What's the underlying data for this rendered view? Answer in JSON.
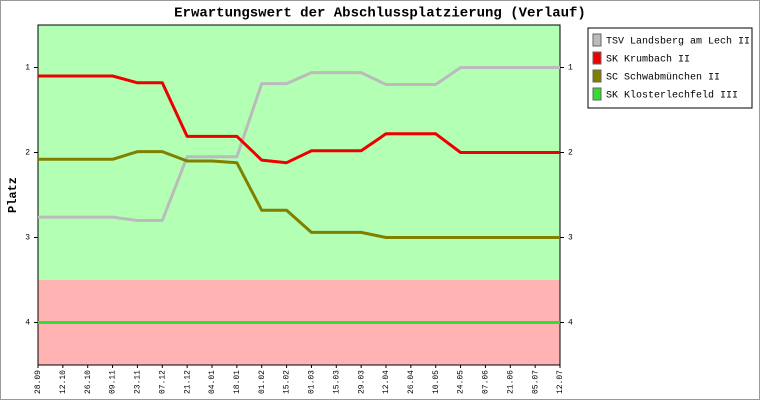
{
  "chart_data": {
    "type": "line",
    "title": "Erwartungswert der Abschlussplatzierung (Verlauf)",
    "y_label": "Platz",
    "categories": [
      "28.09",
      "12.10",
      "26.10",
      "09.11",
      "23.11",
      "07.12",
      "21.12",
      "04.01",
      "18.01",
      "01.02",
      "15.02",
      "01.03",
      "15.03",
      "29.03",
      "12.04",
      "26.04",
      "10.05",
      "24.05",
      "07.06",
      "21.06",
      "05.07",
      "12.07"
    ],
    "ylim": [
      0.5,
      4.5
    ],
    "y_inverted": true,
    "yticks": [
      1,
      2,
      3,
      4
    ],
    "zones": [
      {
        "from": 0.5,
        "to": 3.5,
        "color": "#b3ffb3"
      },
      {
        "from": 3.5,
        "to": 4.5,
        "color": "#ffb3b3"
      }
    ],
    "series": [
      {
        "name": "TSV Landsberg am Lech II",
        "color": "#bbbbbb",
        "values": [
          2.76,
          2.76,
          2.76,
          2.76,
          2.8,
          2.8,
          2.05,
          2.05,
          2.05,
          1.19,
          1.19,
          1.06,
          1.06,
          1.06,
          1.2,
          1.2,
          1.2,
          1.0,
          1.0,
          1.0,
          1.0,
          1.0
        ]
      },
      {
        "name": "SK Krumbach II",
        "color": "#ee0000",
        "values": [
          1.1,
          1.1,
          1.1,
          1.1,
          1.18,
          1.18,
          1.81,
          1.81,
          1.81,
          2.09,
          2.12,
          1.98,
          1.98,
          1.98,
          1.78,
          1.78,
          1.78,
          2.0,
          2.0,
          2.0,
          2.0,
          2.0
        ]
      },
      {
        "name": "SC Schwabmünchen II",
        "color": "#808000",
        "values": [
          2.08,
          2.08,
          2.08,
          2.08,
          1.99,
          1.99,
          2.1,
          2.1,
          2.12,
          2.68,
          2.68,
          2.94,
          2.94,
          2.94,
          3.0,
          3.0,
          3.0,
          3.0,
          3.0,
          3.0,
          3.0,
          3.0
        ]
      },
      {
        "name": "SK Klosterlechfeld III",
        "color": "#33dd33",
        "values": [
          4,
          4,
          4,
          4,
          4,
          4,
          4,
          4,
          4,
          4,
          4,
          4,
          4,
          4,
          4,
          4,
          4,
          4,
          4,
          4,
          4,
          4
        ]
      }
    ]
  }
}
